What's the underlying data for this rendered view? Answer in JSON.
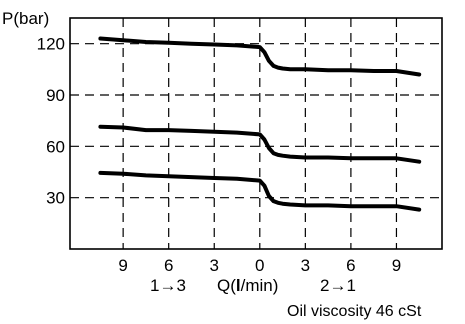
{
  "chart_data": {
    "type": "line",
    "ylabel": "P(bar)",
    "xlabel": "Q(l/min)",
    "x_direction_left": "1→3",
    "x_direction_right": "2→1",
    "note": "Oil viscosity 46 cSt",
    "xlim": [
      -12.5,
      12
    ],
    "ylim": [
      0,
      135
    ],
    "x_ticks": [
      {
        "value": -9,
        "label": "9"
      },
      {
        "value": -6,
        "label": "6"
      },
      {
        "value": -3,
        "label": "3"
      },
      {
        "value": 0,
        "label": "0"
      },
      {
        "value": 3,
        "label": "3"
      },
      {
        "value": 6,
        "label": "6"
      },
      {
        "value": 9,
        "label": "9"
      }
    ],
    "y_ticks": [
      {
        "value": 30,
        "label": "30"
      },
      {
        "value": 60,
        "label": "60"
      },
      {
        "value": 90,
        "label": "90"
      },
      {
        "value": 120,
        "label": "120"
      }
    ],
    "grid": true,
    "series": [
      {
        "x": [
          -10.5,
          -9,
          -7.5,
          -6,
          -4.5,
          -3,
          -1.5,
          0,
          0.3,
          0.6,
          0.9,
          1.2,
          1.5,
          2,
          3,
          4.5,
          6,
          7.5,
          9,
          10.5
        ],
        "y": [
          123,
          122,
          121,
          120.5,
          120,
          119.5,
          119,
          118,
          115,
          110,
          107,
          106,
          105.5,
          105,
          105,
          104.5,
          104.5,
          104,
          104,
          102
        ]
      },
      {
        "x": [
          -10.5,
          -9,
          -7.5,
          -6,
          -4.5,
          -3,
          -1.5,
          0,
          0.3,
          0.6,
          0.9,
          1.2,
          1.5,
          2,
          3,
          4.5,
          6,
          7.5,
          9,
          10.5
        ],
        "y": [
          71.5,
          71,
          69.5,
          69.5,
          69,
          68.5,
          68,
          67,
          64,
          59,
          56,
          55,
          54.5,
          54,
          53.5,
          53.5,
          53,
          53,
          53,
          51
        ]
      },
      {
        "x": [
          -10.5,
          -9,
          -7.5,
          -6,
          -4.5,
          -3,
          -1.5,
          0,
          0.3,
          0.6,
          0.9,
          1.2,
          1.5,
          2,
          3,
          4.5,
          6,
          7.5,
          9,
          10.5
        ],
        "y": [
          44.5,
          44,
          43,
          42.5,
          42,
          41.5,
          41,
          40,
          37,
          31,
          28,
          27,
          26.5,
          26,
          25.5,
          25.5,
          25,
          25,
          25,
          23
        ]
      }
    ]
  }
}
